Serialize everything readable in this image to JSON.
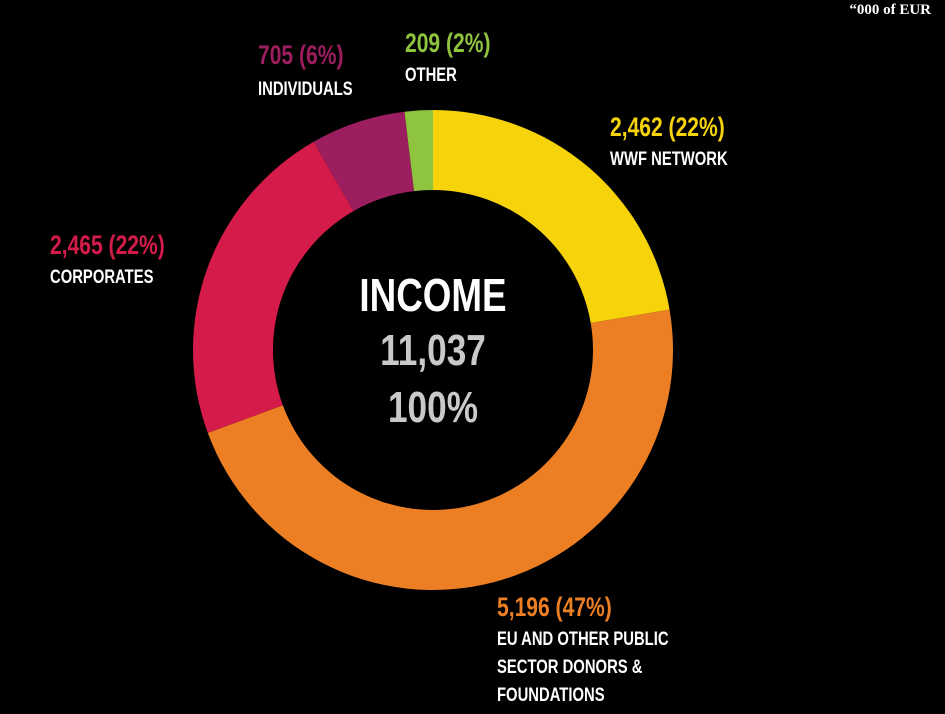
{
  "chart_data": {
    "type": "donut",
    "unit_note": "“000 of EUR",
    "center_text": [
      "INCOME",
      "11,037",
      "100%"
    ],
    "categories": [
      "WWF NETWORK",
      "EU AND OTHER PUBLIC SECTOR DONORS & FOUNDATIONS",
      "CORPORATES",
      "INDIVIDUALS",
      "OTHER"
    ],
    "values": [
      2462,
      5196,
      2465,
      705,
      209
    ],
    "value_labels": [
      "2,462  (22%)",
      "5,196  (47%)",
      "2,465  (22%)",
      "705  (6%)",
      "209  (2%)"
    ],
    "colors": [
      "#f6d30b",
      "#ec7f24",
      "#d51b49",
      "#9c1e5f",
      "#8fc43e"
    ]
  }
}
